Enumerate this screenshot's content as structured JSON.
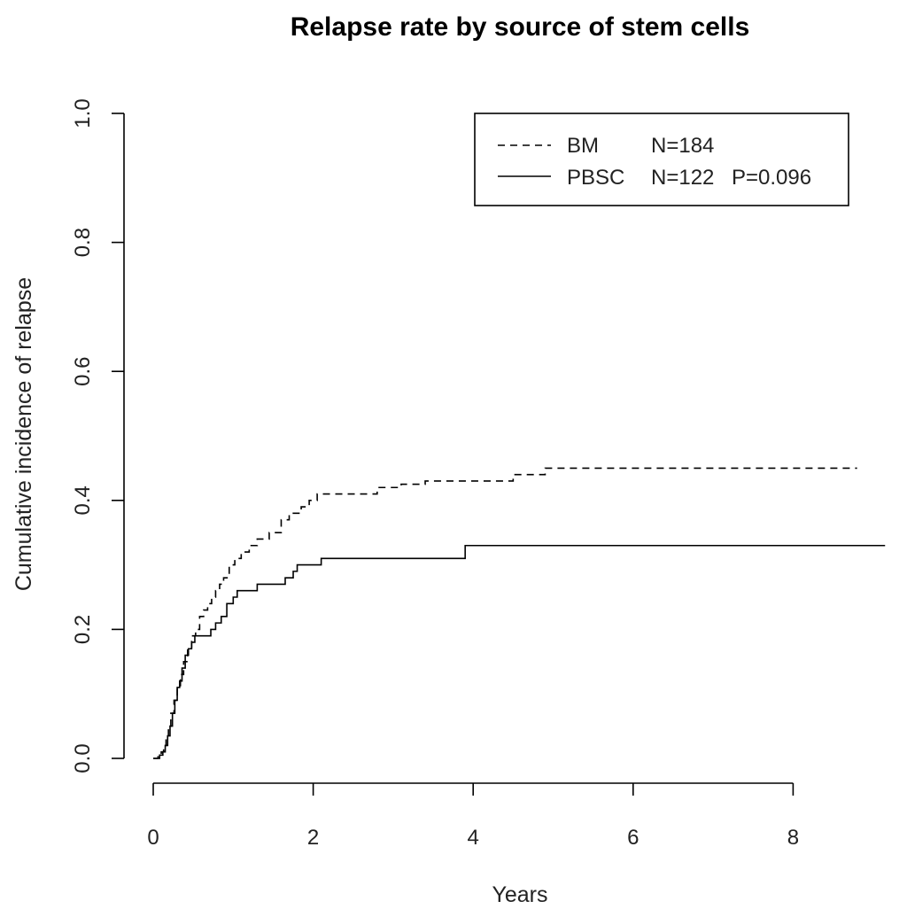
{
  "chart_data": {
    "type": "line",
    "step": true,
    "title": "Relapse rate by source of stem cells",
    "xlabel": "Years",
    "ylabel": "Cumulative incidence of relapse",
    "xlim": [
      -0.4,
      9.5
    ],
    "ylim": [
      -0.04,
      1.04
    ],
    "x_ticks": [
      0,
      2,
      4,
      6,
      8
    ],
    "y_ticks": [
      0.0,
      0.2,
      0.4,
      0.6,
      0.8,
      1.0
    ],
    "y_tick_labels": [
      "0.0",
      "0.2",
      "0.4",
      "0.6",
      "0.8",
      "1.0"
    ],
    "legend": {
      "position": "top-right",
      "entries": [
        {
          "series": "BM",
          "text_label": "BM",
          "text_n": "N=184",
          "text_p": ""
        },
        {
          "series": "PBSC",
          "text_label": "PBSC",
          "text_n": "N=122",
          "text_p": "P=0.096"
        }
      ]
    },
    "series": [
      {
        "name": "BM",
        "linestyle": "dashed",
        "x": [
          0,
          0.06,
          0.1,
          0.13,
          0.16,
          0.19,
          0.22,
          0.26,
          0.3,
          0.34,
          0.38,
          0.43,
          0.48,
          0.53,
          0.58,
          0.63,
          0.68,
          0.73,
          0.78,
          0.83,
          0.88,
          0.95,
          1.02,
          1.1,
          1.2,
          1.3,
          1.45,
          1.6,
          1.7,
          1.85,
          1.95,
          2.05,
          2.8,
          3.1,
          3.4,
          3.7,
          4.5,
          4.9,
          8.8
        ],
        "y": [
          0,
          0.005,
          0.01,
          0.02,
          0.03,
          0.05,
          0.07,
          0.09,
          0.11,
          0.13,
          0.15,
          0.17,
          0.19,
          0.2,
          0.22,
          0.23,
          0.24,
          0.25,
          0.26,
          0.27,
          0.28,
          0.3,
          0.31,
          0.32,
          0.33,
          0.34,
          0.35,
          0.37,
          0.38,
          0.39,
          0.4,
          0.41,
          0.42,
          0.425,
          0.43,
          0.43,
          0.44,
          0.45,
          0.45
        ]
      },
      {
        "name": "PBSC",
        "linestyle": "solid",
        "x": [
          0,
          0.08,
          0.12,
          0.15,
          0.18,
          0.21,
          0.24,
          0.27,
          0.3,
          0.33,
          0.36,
          0.4,
          0.44,
          0.48,
          0.52,
          0.58,
          0.65,
          0.72,
          0.78,
          0.85,
          0.92,
          1.0,
          1.05,
          1.1,
          1.3,
          1.5,
          1.65,
          1.75,
          1.8,
          2.1,
          3.9,
          9.15
        ],
        "y": [
          0,
          0.005,
          0.01,
          0.02,
          0.035,
          0.05,
          0.07,
          0.09,
          0.11,
          0.12,
          0.14,
          0.16,
          0.17,
          0.18,
          0.19,
          0.19,
          0.19,
          0.2,
          0.21,
          0.22,
          0.24,
          0.25,
          0.26,
          0.26,
          0.27,
          0.27,
          0.28,
          0.29,
          0.3,
          0.31,
          0.33,
          0.33
        ]
      }
    ]
  }
}
